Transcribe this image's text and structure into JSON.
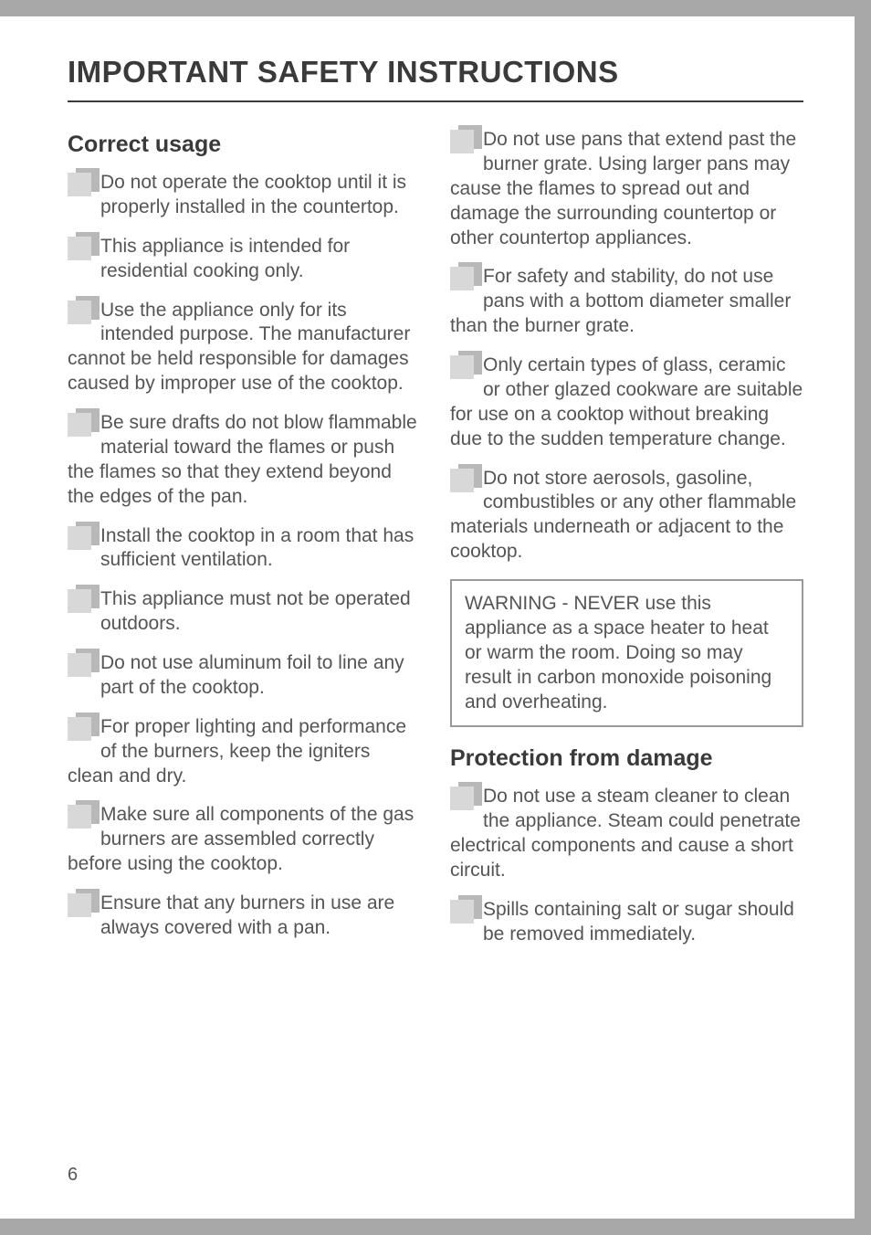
{
  "page": {
    "number": "6",
    "title": "IMPORTANT SAFETY INSTRUCTIONS",
    "title_fontsize": 33,
    "body_fontsize": 21,
    "heading_fontsize": 25,
    "text_color": "#555555",
    "heading_color": "#3a3a3a",
    "rule_color": "#3a3a3a",
    "bullet_color": "#d8d8d8",
    "background": "#ffffff",
    "outer_background": "#a8a8a8",
    "box_border_color": "#9a9a9a"
  },
  "left": {
    "heading": "Correct usage",
    "items": [
      "Do not operate the cooktop until it is properly installed in the countertop.",
      "This appliance is intended for residential cooking only.",
      "Use the appliance only for its intended purpose. The manufacturer cannot be held responsible for damages caused by improper use of the cooktop.",
      "Be sure drafts do not blow flammable material toward the flames or push the flames so that they extend beyond the edges of the pan.",
      "Install the cooktop in a room that has sufficient ventilation.",
      "This appliance must not be operated outdoors.",
      "Do not use aluminum foil to line any part of the cooktop.",
      "For proper lighting and performance of the burners, keep the igniters clean and dry.",
      "Make sure all components of the gas burners are assembled correctly before using the cooktop.",
      "Ensure that any burners in use are always covered with a pan."
    ]
  },
  "right": {
    "items_top": [
      "Do not use pans that extend past the burner grate. Using larger pans may cause the flames to spread out and damage the surrounding countertop or other countertop appliances.",
      "For safety and stability, do not use pans with a bottom diameter smaller than the burner grate.",
      "Only certain types of glass, ceramic or other glazed cookware are suitable for use on a cooktop without breaking due to the sudden temperature change.",
      "Do not store aerosols, gasoline, combustibles or any other flammable materials underneath or adjacent to the cooktop."
    ],
    "warning_box": "WARNING - NEVER use this appliance as a space heater to heat or warm the room. Doing so may result in carbon monoxide poisoning and overheating.",
    "heading2": "Protection from damage",
    "items_bottom": [
      "Do not use a steam cleaner to clean the appliance. Steam could penetrate electrical components and cause a short circuit.",
      "Spills containing salt or sugar should be removed immediately."
    ]
  }
}
